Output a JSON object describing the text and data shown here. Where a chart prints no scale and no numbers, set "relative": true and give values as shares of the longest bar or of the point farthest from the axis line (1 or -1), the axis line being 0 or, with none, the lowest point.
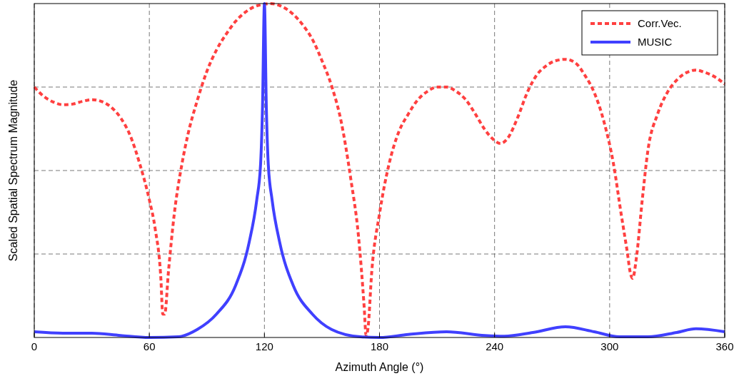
{
  "chart_data": {
    "type": "line",
    "relative": true,
    "xlabel": "Azimuth Angle (°)",
    "ylabel": "Scaled Spatial Spectrum Magnitude",
    "xlim": [
      0,
      360
    ],
    "xticks": [
      0,
      60,
      120,
      180,
      240,
      300,
      360
    ],
    "grid": true,
    "legend": "top right",
    "series": [
      {
        "name": "Corr.Vec.",
        "color": "#ff4040",
        "line_style": "dashed",
        "x": [
          0,
          5,
          10,
          15,
          20,
          25,
          30,
          35,
          40,
          45,
          50,
          55,
          60,
          63,
          66,
          67,
          68,
          70,
          73,
          77,
          80,
          85,
          90,
          95,
          100,
          105,
          110,
          115,
          120,
          123,
          128,
          135,
          140,
          145,
          150,
          155,
          160,
          165,
          169,
          172,
          173,
          174,
          176,
          180,
          185,
          190,
          195,
          200,
          205,
          210,
          215,
          220,
          225,
          230,
          235,
          240,
          243,
          247,
          252,
          257,
          262,
          267,
          272,
          277,
          282,
          287,
          292,
          297,
          302,
          306,
          309,
          311,
          312,
          314,
          317,
          320,
          325,
          330,
          335,
          340,
          345,
          350,
          355,
          360
        ],
        "values": [
          0.75,
          0.722,
          0.705,
          0.697,
          0.699,
          0.707,
          0.712,
          0.707,
          0.69,
          0.658,
          0.605,
          0.52,
          0.412,
          0.327,
          0.177,
          0.07,
          0.07,
          0.2,
          0.37,
          0.52,
          0.605,
          0.71,
          0.797,
          0.861,
          0.908,
          0.947,
          0.974,
          0.991,
          0.998,
          1,
          0.994,
          0.968,
          0.936,
          0.893,
          0.829,
          0.754,
          0.647,
          0.476,
          0.306,
          0.092,
          0.006,
          0.028,
          0.2,
          0.37,
          0.52,
          0.615,
          0.669,
          0.712,
          0.737,
          0.75,
          0.75,
          0.737,
          0.712,
          0.669,
          0.622,
          0.59,
          0.581,
          0.598,
          0.658,
          0.733,
          0.786,
          0.814,
          0.829,
          0.833,
          0.823,
          0.786,
          0.733,
          0.647,
          0.52,
          0.37,
          0.263,
          0.188,
          0.177,
          0.241,
          0.412,
          0.562,
          0.669,
          0.733,
          0.771,
          0.793,
          0.801,
          0.793,
          0.78,
          0.759
        ]
      },
      {
        "name": "MUSIC",
        "color": "#4040ff",
        "line_style": "solid",
        "x": [
          0,
          15,
          30,
          45,
          60,
          75,
          85,
          95,
          105,
          112,
          116,
          118,
          119,
          120,
          121,
          122,
          124,
          128,
          135,
          145,
          155,
          170,
          180,
          195,
          215,
          235,
          245,
          260,
          277,
          292,
          305,
          320,
          335,
          345,
          360
        ],
        "values": [
          0.017,
          0.013,
          0.013,
          0.006,
          0,
          0.002,
          0.024,
          0.07,
          0.156,
          0.284,
          0.412,
          0.519,
          0.69,
          1,
          0.69,
          0.519,
          0.412,
          0.284,
          0.156,
          0.07,
          0.024,
          0.002,
          0,
          0.009,
          0.017,
          0.006,
          0.004,
          0.015,
          0.032,
          0.017,
          0.002,
          0.002,
          0.015,
          0.026,
          0.017
        ]
      }
    ]
  }
}
